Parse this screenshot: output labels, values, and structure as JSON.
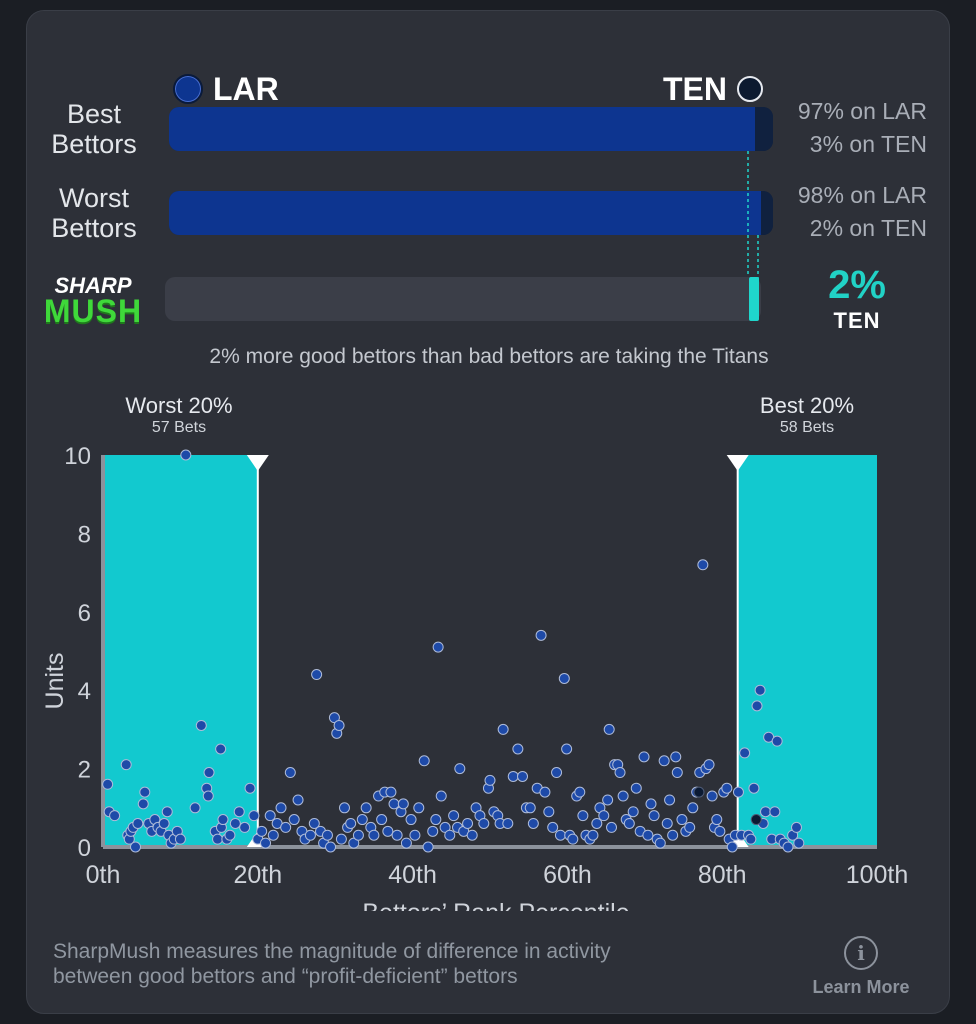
{
  "teams": {
    "left": {
      "abbr": "LAR",
      "color": "#0d3590"
    },
    "right": {
      "abbr": "TEN",
      "color": "#10213f"
    }
  },
  "rows": {
    "best": {
      "label_line1": "Best",
      "label_line2": "Bettors",
      "lar_pct": 97,
      "lar_text": "97% on LAR",
      "ten_text": "3% on TEN"
    },
    "worst": {
      "label_line1": "Worst",
      "label_line2": "Bettors",
      "lar_pct": 98,
      "lar_text": "98% on LAR",
      "ten_text": "2% on TEN"
    }
  },
  "sharpmush": {
    "logo_top": "SHARP",
    "logo_bottom": "MUSH",
    "value_text": "2%",
    "team_text": "TEN",
    "accent": "#1fd6cc"
  },
  "summary": "2% more good bettors than bad bettors are taking the Titans",
  "chart_labels": {
    "worst_title": "Worst 20%",
    "worst_sub": "57 Bets",
    "best_title": "Best 20%",
    "best_sub": "58 Bets"
  },
  "chart_data": {
    "type": "scatter",
    "xlabel": "Bettors’ Rank Percentile",
    "ylabel": "Units",
    "xlim": [
      0,
      100
    ],
    "ylim": [
      0,
      10
    ],
    "x_ticks": [
      "0th",
      "20th",
      "40th",
      "60th",
      "80th",
      "100th"
    ],
    "y_ticks": [
      "0",
      "2",
      "4",
      "6",
      "8",
      "10"
    ],
    "highlight_ranges": [
      [
        0,
        20
      ],
      [
        82,
        100
      ]
    ],
    "highlight_color": "#12c9cf",
    "point_color": "#1e4aa8",
    "points": [
      [
        0.6,
        1.6
      ],
      [
        0.8,
        0.9
      ],
      [
        1.5,
        0.8
      ],
      [
        3.0,
        2.1
      ],
      [
        3.2,
        0.3
      ],
      [
        3.4,
        0.2
      ],
      [
        3.6,
        0.4
      ],
      [
        3.9,
        0.5
      ],
      [
        4.2,
        0.0
      ],
      [
        4.5,
        0.6
      ],
      [
        5.2,
        1.1
      ],
      [
        5.4,
        1.4
      ],
      [
        5.9,
        0.6
      ],
      [
        6.3,
        0.4
      ],
      [
        6.7,
        0.7
      ],
      [
        7.1,
        0.5
      ],
      [
        7.5,
        0.4
      ],
      [
        7.9,
        0.6
      ],
      [
        8.3,
        0.9
      ],
      [
        8.5,
        0.3
      ],
      [
        8.8,
        0.1
      ],
      [
        9.2,
        0.2
      ],
      [
        9.6,
        0.4
      ],
      [
        10.0,
        0.2
      ],
      [
        10.7,
        10.0
      ],
      [
        11.9,
        1.0
      ],
      [
        12.7,
        3.1
      ],
      [
        13.4,
        1.5
      ],
      [
        13.6,
        1.3
      ],
      [
        13.7,
        1.9
      ],
      [
        14.5,
        0.4
      ],
      [
        14.8,
        0.2
      ],
      [
        15.2,
        2.5
      ],
      [
        15.3,
        0.5
      ],
      [
        15.5,
        0.7
      ],
      [
        16.0,
        0.2
      ],
      [
        16.4,
        0.3
      ],
      [
        17.1,
        0.6
      ],
      [
        17.6,
        0.9
      ],
      [
        18.3,
        0.5
      ],
      [
        19.0,
        1.5
      ],
      [
        19.5,
        0.8
      ],
      [
        20.0,
        0.2
      ],
      [
        20.5,
        0.4
      ],
      [
        21.0,
        0.1
      ],
      [
        21.6,
        0.8
      ],
      [
        22.0,
        0.3
      ],
      [
        22.5,
        0.6
      ],
      [
        23.0,
        1.0
      ],
      [
        23.6,
        0.5
      ],
      [
        24.2,
        1.9
      ],
      [
        24.7,
        0.7
      ],
      [
        25.2,
        1.2
      ],
      [
        25.7,
        0.4
      ],
      [
        26.1,
        0.2
      ],
      [
        26.8,
        0.3
      ],
      [
        27.3,
        0.6
      ],
      [
        27.6,
        4.4
      ],
      [
        28.1,
        0.4
      ],
      [
        28.5,
        0.1
      ],
      [
        29.0,
        0.3
      ],
      [
        29.4,
        0.0
      ],
      [
        29.9,
        3.3
      ],
      [
        30.2,
        2.9
      ],
      [
        30.5,
        3.1
      ],
      [
        30.8,
        0.2
      ],
      [
        31.2,
        1.0
      ],
      [
        31.6,
        0.5
      ],
      [
        32.0,
        0.6
      ],
      [
        32.4,
        0.1
      ],
      [
        33.0,
        0.3
      ],
      [
        33.5,
        0.7
      ],
      [
        34.0,
        1.0
      ],
      [
        34.6,
        0.5
      ],
      [
        35.0,
        0.3
      ],
      [
        35.6,
        1.3
      ],
      [
        36.0,
        0.7
      ],
      [
        36.4,
        1.4
      ],
      [
        36.8,
        0.4
      ],
      [
        37.2,
        1.4
      ],
      [
        37.6,
        1.1
      ],
      [
        38.0,
        0.3
      ],
      [
        38.5,
        0.9
      ],
      [
        38.8,
        1.1
      ],
      [
        39.2,
        0.1
      ],
      [
        39.8,
        0.7
      ],
      [
        40.3,
        0.3
      ],
      [
        40.8,
        1.0
      ],
      [
        41.5,
        2.2
      ],
      [
        42.0,
        0.0
      ],
      [
        42.6,
        0.4
      ],
      [
        43.0,
        0.7
      ],
      [
        43.3,
        5.1
      ],
      [
        43.7,
        1.3
      ],
      [
        44.2,
        0.5
      ],
      [
        44.8,
        0.3
      ],
      [
        45.3,
        0.8
      ],
      [
        45.8,
        0.5
      ],
      [
        46.1,
        2.0
      ],
      [
        46.6,
        0.4
      ],
      [
        47.1,
        0.6
      ],
      [
        47.7,
        0.3
      ],
      [
        48.2,
        1.0
      ],
      [
        48.7,
        0.8
      ],
      [
        49.2,
        0.6
      ],
      [
        49.8,
        1.5
      ],
      [
        50.0,
        1.7
      ],
      [
        50.5,
        0.9
      ],
      [
        51.0,
        0.8
      ],
      [
        51.3,
        0.6
      ],
      [
        51.7,
        3.0
      ],
      [
        52.3,
        0.6
      ],
      [
        53.0,
        1.8
      ],
      [
        53.6,
        2.5
      ],
      [
        54.2,
        1.8
      ],
      [
        54.7,
        1.0
      ],
      [
        55.2,
        1.0
      ],
      [
        55.6,
        0.6
      ],
      [
        56.1,
        1.5
      ],
      [
        56.6,
        5.4
      ],
      [
        57.1,
        1.4
      ],
      [
        57.6,
        0.9
      ],
      [
        58.1,
        0.5
      ],
      [
        58.6,
        1.9
      ],
      [
        59.1,
        0.3
      ],
      [
        59.6,
        4.3
      ],
      [
        59.9,
        2.5
      ],
      [
        60.3,
        0.3
      ],
      [
        60.7,
        0.2
      ],
      [
        61.2,
        1.3
      ],
      [
        61.6,
        1.4
      ],
      [
        62.0,
        0.8
      ],
      [
        62.4,
        0.3
      ],
      [
        62.9,
        0.2
      ],
      [
        63.3,
        0.3
      ],
      [
        63.8,
        0.6
      ],
      [
        64.2,
        1.0
      ],
      [
        64.7,
        0.8
      ],
      [
        65.2,
        1.2
      ],
      [
        65.4,
        3.0
      ],
      [
        65.7,
        0.5
      ],
      [
        66.1,
        2.1
      ],
      [
        66.5,
        2.1
      ],
      [
        66.8,
        1.9
      ],
      [
        67.2,
        1.3
      ],
      [
        67.6,
        0.7
      ],
      [
        68.0,
        0.6
      ],
      [
        68.5,
        0.9
      ],
      [
        68.9,
        1.5
      ],
      [
        69.4,
        0.4
      ],
      [
        69.9,
        2.3
      ],
      [
        70.4,
        0.3
      ],
      [
        70.8,
        1.1
      ],
      [
        71.2,
        0.8
      ],
      [
        71.6,
        0.2
      ],
      [
        72.0,
        0.1
      ],
      [
        72.5,
        2.2
      ],
      [
        72.9,
        0.6
      ],
      [
        73.2,
        1.2
      ],
      [
        73.6,
        0.3
      ],
      [
        74.0,
        2.3
      ],
      [
        74.2,
        1.9
      ],
      [
        74.8,
        0.7
      ],
      [
        75.3,
        0.4
      ],
      [
        75.8,
        0.5
      ],
      [
        76.2,
        1.0
      ],
      [
        76.7,
        1.4
      ],
      [
        77.1,
        1.9
      ],
      [
        77.5,
        7.2
      ],
      [
        77.9,
        2.0
      ],
      [
        78.3,
        2.1
      ],
      [
        78.7,
        1.3
      ],
      [
        79.0,
        0.5
      ],
      [
        79.3,
        0.7
      ],
      [
        79.7,
        0.4
      ],
      [
        80.2,
        1.4
      ],
      [
        80.6,
        1.5
      ],
      [
        80.9,
        0.2
      ],
      [
        81.3,
        0.0
      ],
      [
        81.7,
        0.3
      ],
      [
        82.1,
        1.4
      ],
      [
        82.5,
        0.3
      ],
      [
        82.9,
        2.4
      ],
      [
        83.4,
        0.3
      ],
      [
        83.7,
        0.2
      ],
      [
        84.1,
        1.5
      ],
      [
        84.5,
        3.6
      ],
      [
        84.9,
        4.0
      ],
      [
        85.3,
        0.6
      ],
      [
        85.6,
        0.9
      ],
      [
        86.0,
        2.8
      ],
      [
        86.4,
        0.2
      ],
      [
        86.8,
        0.9
      ],
      [
        87.1,
        2.7
      ],
      [
        87.5,
        0.2
      ],
      [
        88.0,
        0.1
      ],
      [
        88.5,
        0.0
      ],
      [
        89.1,
        0.3
      ],
      [
        89.6,
        0.5
      ],
      [
        89.9,
        0.1
      ]
    ],
    "dark_points": [
      [
        77.0,
        1.4
      ],
      [
        84.4,
        0.7
      ]
    ]
  },
  "footer": {
    "line1": "SharpMush measures the magnitude of difference in activity",
    "line2": "between good bettors and “profit-deficient” bettors",
    "learn_more": "Learn More",
    "info_glyph": "i"
  }
}
